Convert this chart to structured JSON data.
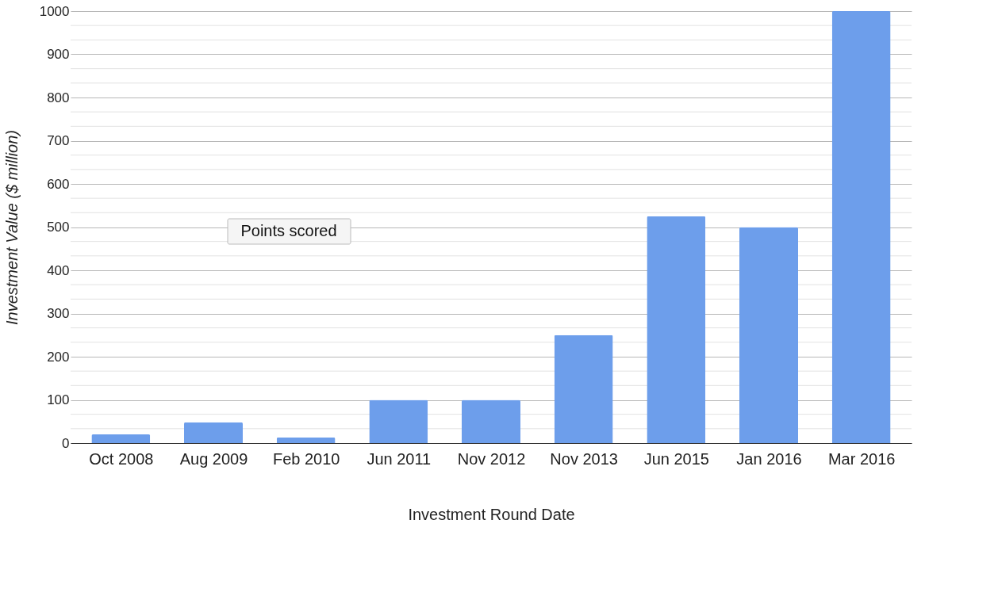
{
  "chart_data": {
    "type": "bar",
    "xlabel": "Investment Round Date",
    "ylabel": "Investment Value ($ million)",
    "categories": [
      "Oct 2008",
      "Aug 2009",
      "Feb 2010",
      "Jun 2011",
      "Nov 2012",
      "Nov 2013",
      "Jun 2015",
      "Jan 2016",
      "Mar 2016"
    ],
    "values": [
      20,
      48,
      13,
      100,
      100,
      250,
      525,
      500,
      1000
    ],
    "color": "#6d9eeb",
    "ylim": [
      0,
      1000
    ],
    "yticks": [
      0,
      100,
      200,
      300,
      400,
      500,
      600,
      700,
      800,
      900,
      1000
    ],
    "grid": "y",
    "annotations": [
      "Points scored"
    ]
  }
}
